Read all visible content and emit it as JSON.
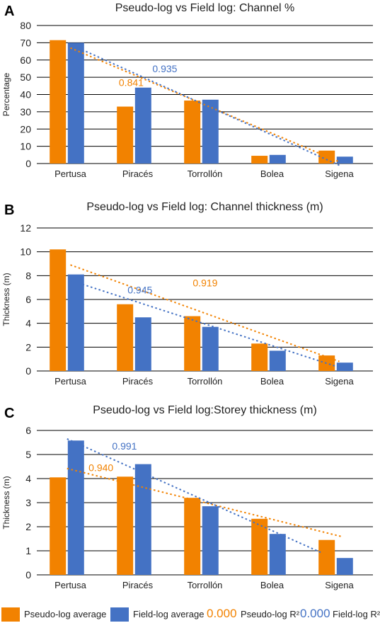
{
  "colors": {
    "pseudo": "#F28200",
    "field": "#4472C4",
    "grid": "#000000",
    "text": "#222222"
  },
  "chart_data": [
    {
      "panel_label": "A",
      "type": "bar",
      "title": "Pseudo-log vs Field log: Channel %",
      "ylabel": "Percentage",
      "xlabel": "",
      "categories": [
        "Pertusa",
        "Piracés",
        "Torrollón",
        "Bolea",
        "Sigena"
      ],
      "ylim": [
        0,
        80
      ],
      "yticks": [
        "0",
        "10",
        "20",
        "30",
        "40",
        "50",
        "60",
        "70",
        "80"
      ],
      "grid": true,
      "series": [
        {
          "key": "pseudo",
          "values": [
            71.5,
            33,
            36.5,
            4.5,
            7.5
          ]
        },
        {
          "key": "field",
          "values": [
            70,
            44,
            37,
            5,
            4
          ]
        }
      ],
      "trendlines": [
        {
          "series": "pseudo",
          "from": [
            1,
            67
          ],
          "to": [
            5,
            1
          ],
          "r2_label": "0.841",
          "r2_at": [
            1.72,
            47
          ]
        },
        {
          "series": "field",
          "from": [
            1,
            69
          ],
          "to": [
            5,
            -1
          ],
          "r2_label": "0.935",
          "r2_at": [
            2.22,
            55
          ]
        }
      ]
    },
    {
      "panel_label": "B",
      "type": "bar",
      "title": "Pseudo-log vs Field log: Channel thickness (m)",
      "ylabel": "Thickness (m)",
      "xlabel": "",
      "categories": [
        "Pertusa",
        "Piracés",
        "Torrollón",
        "Bolea",
        "Sigena"
      ],
      "ylim": [
        0,
        12
      ],
      "yticks": [
        "0",
        "2",
        "4",
        "6",
        "8",
        "10",
        "12"
      ],
      "grid": true,
      "series": [
        {
          "key": "pseudo",
          "values": [
            10.2,
            5.6,
            4.6,
            2.3,
            1.3
          ]
        },
        {
          "key": "field",
          "values": [
            8.1,
            4.5,
            3.7,
            1.7,
            0.7
          ]
        }
      ],
      "trendlines": [
        {
          "series": "pseudo",
          "from": [
            1,
            8.9
          ],
          "to": [
            5,
            0.8
          ],
          "r2_label": "0.919",
          "r2_at": [
            2.82,
            7.4
          ]
        },
        {
          "series": "field",
          "from": [
            1,
            7.6
          ],
          "to": [
            5,
            0.3
          ],
          "r2_label": "0.945",
          "r2_at": [
            1.85,
            6.8
          ]
        }
      ]
    },
    {
      "panel_label": "C",
      "type": "bar",
      "title": "Pseudo-log vs Field log:Storey thickness (m)",
      "ylabel": "Thickness (m)",
      "xlabel": "",
      "categories": [
        "Pertusa",
        "Piracés",
        "Torrollón",
        "Bolea",
        "Sigena"
      ],
      "ylim": [
        0,
        6
      ],
      "yticks": [
        "0",
        "1",
        "2",
        "3",
        "4",
        "5",
        "6"
      ],
      "grid": true,
      "series": [
        {
          "key": "pseudo",
          "values": [
            4.05,
            4.08,
            3.2,
            2.33,
            1.45
          ]
        },
        {
          "key": "field",
          "values": [
            5.58,
            4.6,
            2.85,
            1.7,
            0.7
          ]
        }
      ],
      "trendlines": [
        {
          "series": "pseudo",
          "from": [
            0.95,
            4.42
          ],
          "to": [
            5.05,
            1.58
          ],
          "r2_label": "0.940",
          "r2_at": [
            1.27,
            4.45
          ]
        },
        {
          "series": "field",
          "from": [
            0.95,
            5.65
          ],
          "to": [
            4.75,
            0.9
          ],
          "r2_label": "0.991",
          "r2_at": [
            1.62,
            5.35
          ]
        }
      ]
    }
  ],
  "legend": {
    "pseudo_label": "Pseudo-log average",
    "field_label": "Field-log average",
    "pseudo_r2_number": "0.000",
    "pseudo_r2_label": "Pseudo-log R²",
    "field_r2_number": "0.000",
    "field_r2_label": "Field-log R²"
  }
}
